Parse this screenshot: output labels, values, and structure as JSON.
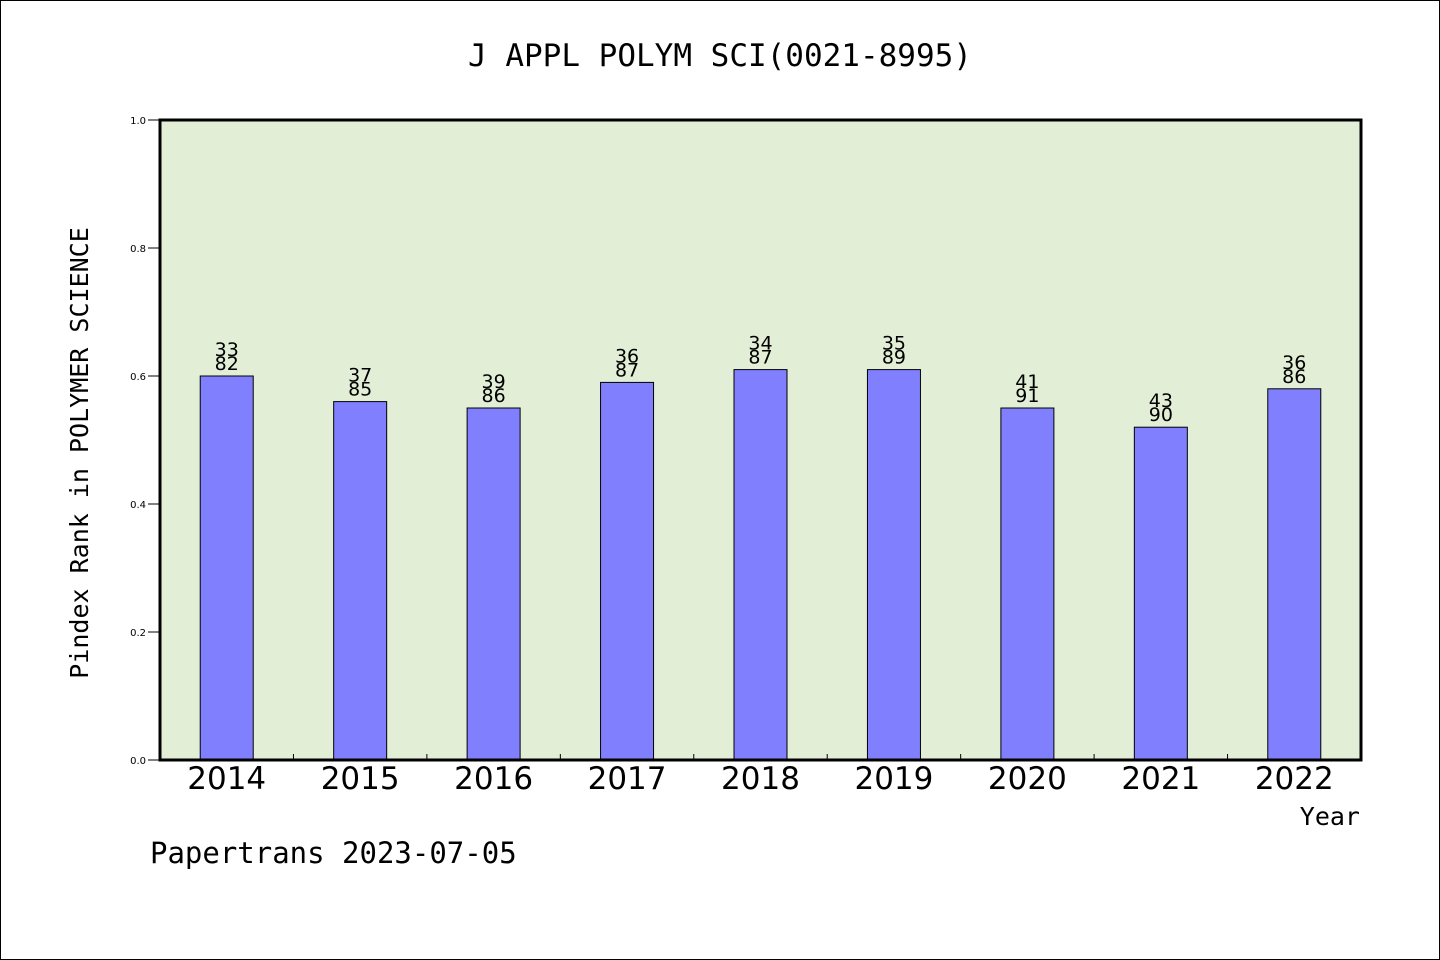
{
  "chart_data": {
    "type": "bar",
    "title": "J APPL POLYM SCI(0021-8995)",
    "ylabel": "Pindex Rank in POLYMER SCIENCE",
    "xlabel": "Year",
    "ylim": [
      0,
      1.0
    ],
    "yticks": [
      "0.0",
      "0.2",
      "0.4",
      "0.6",
      "0.8",
      "1.0"
    ],
    "categories": [
      "2014",
      "2015",
      "2016",
      "2017",
      "2018",
      "2019",
      "2020",
      "2021",
      "2022"
    ],
    "values": [
      0.6,
      0.56,
      0.55,
      0.59,
      0.61,
      0.61,
      0.55,
      0.52,
      0.58
    ],
    "rank_labels": [
      {
        "rank": "33",
        "total": "82"
      },
      {
        "rank": "37",
        "total": "85"
      },
      {
        "rank": "39",
        "total": "86"
      },
      {
        "rank": "36",
        "total": "87"
      },
      {
        "rank": "34",
        "total": "87"
      },
      {
        "rank": "35",
        "total": "89"
      },
      {
        "rank": "41",
        "total": "91"
      },
      {
        "rank": "43",
        "total": "90"
      },
      {
        "rank": "36",
        "total": "86"
      }
    ],
    "grid": false,
    "colors": {
      "bar": "#8080ff",
      "plot_background": "#e2efd6",
      "axis": "#000000"
    }
  },
  "footer": "Papertrans 2023-07-05"
}
